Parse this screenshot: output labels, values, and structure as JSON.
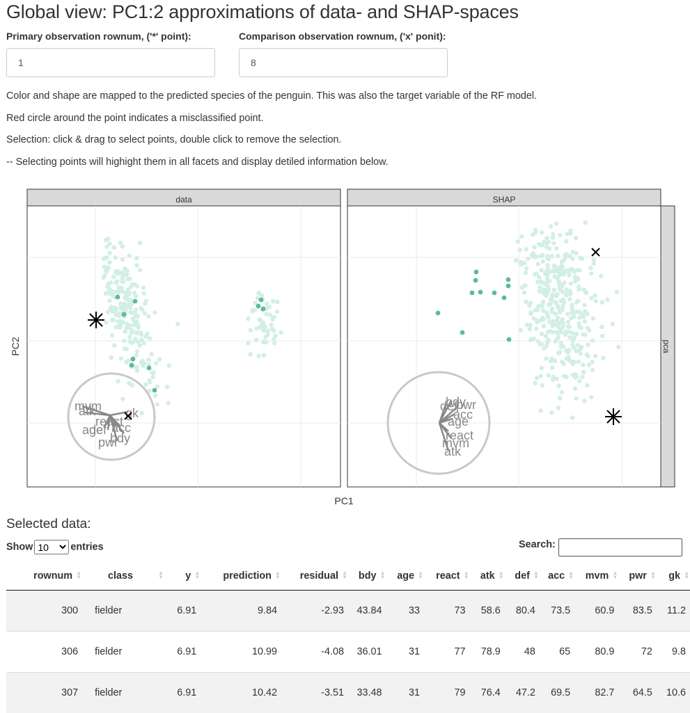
{
  "page": {
    "title": "Global view: PC1:2 approximations of data- and SHAP-spaces",
    "primary_label": "Primary observation rownum, ('*' point):",
    "primary_value": "1",
    "comparison_label": "Comparison observation rownum, ('x' ponit):",
    "comparison_value": "8",
    "paragraphs": [
      "Color and shape are mapped to the predicted species of the penguin. This was also the target variable of the RF model.",
      "Red circle around the point indicates a misclassified point.",
      "Selection: click & drag to select points, double click to remove the selection.",
      "-- Selecting points will highight them in all facets and display detiled information below."
    ]
  },
  "plot": {
    "facets": [
      "data",
      "SHAP"
    ],
    "row_strip": "pca",
    "xlabel": "PC1",
    "ylabel": "PC2",
    "colors": {
      "light_point": "#d3efe4",
      "dark_point": "#5dbb94",
      "panel_border": "#333333",
      "strip": "#d9d9d9",
      "grid": "#ebebeb",
      "axes_line": "#888888"
    },
    "data_axes_labels": [
      "mvm",
      "atk",
      "react",
      "age",
      "def",
      "acc",
      "bdy",
      "pwr",
      "gk"
    ],
    "shap_axes_labels": [
      "bdy",
      "def",
      "pwr",
      "acc",
      "age",
      "react",
      "mvm",
      "atk"
    ]
  },
  "selected": {
    "heading": "Selected data:",
    "show_prefix": "Show",
    "show_value": "10",
    "show_suffix": "entries",
    "search_label": "Search:",
    "columns": [
      "rownum",
      "class",
      "y",
      "prediction",
      "residual",
      "bdy",
      "age",
      "react",
      "atk",
      "def",
      "acc",
      "mvm",
      "pwr",
      "gk"
    ],
    "rows": [
      [
        "300",
        "fielder",
        "6.91",
        "9.84",
        "-2.93",
        "43.84",
        "33",
        "73",
        "58.6",
        "80.4",
        "73.5",
        "60.9",
        "83.5",
        "11.2"
      ],
      [
        "306",
        "fielder",
        "6.91",
        "10.99",
        "-4.08",
        "36.01",
        "31",
        "77",
        "78.9",
        "48",
        "65",
        "80.9",
        "72",
        "9.8"
      ],
      [
        "307",
        "fielder",
        "6.91",
        "10.42",
        "-3.51",
        "33.48",
        "31",
        "79",
        "76.4",
        "47.2",
        "69.5",
        "82.7",
        "64.5",
        "10.6"
      ]
    ]
  }
}
